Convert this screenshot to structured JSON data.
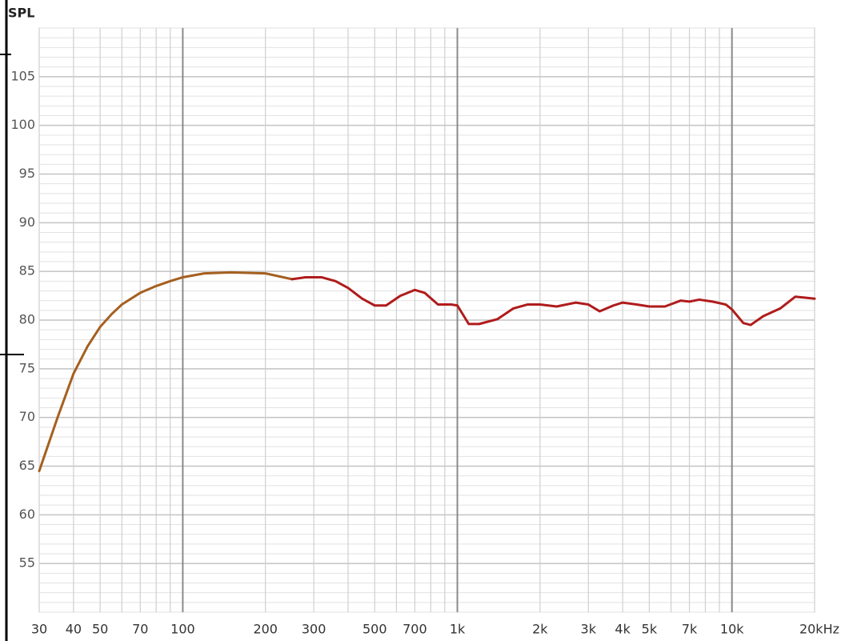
{
  "chart_data": {
    "type": "line",
    "y_label": "SPL",
    "xscale": "log",
    "xlim": [
      30,
      20000
    ],
    "ylim": [
      50,
      110
    ],
    "grid": true,
    "xticks": [
      30,
      40,
      50,
      70,
      100,
      200,
      300,
      500,
      700,
      {
        "value": 1000,
        "label": "1k"
      },
      {
        "value": 2000,
        "label": "2k"
      },
      {
        "value": 3000,
        "label": "3k"
      },
      {
        "value": 4000,
        "label": "4k"
      },
      {
        "value": 5000,
        "label": "5k"
      },
      {
        "value": 7000,
        "label": "7k"
      },
      {
        "value": 10000,
        "label": "10k"
      },
      {
        "value": 20000,
        "label": "20kHz"
      }
    ],
    "xminor_ticks": [
      60,
      80,
      90,
      400,
      600,
      800,
      900,
      6000,
      8000,
      9000
    ],
    "yticks": [
      55,
      60,
      65,
      70,
      75,
      80,
      85,
      90,
      95,
      100,
      105
    ],
    "series": [
      {
        "color": "#a5601f",
        "x": [
          30,
          35,
          40,
          45,
          50,
          55,
          60,
          70,
          80,
          90,
          100,
          120,
          150,
          200,
          250
        ],
        "values": [
          64.5,
          70,
          74.5,
          77.3,
          79.3,
          80.6,
          81.6,
          82.8,
          83.5,
          84,
          84.4,
          84.8,
          84.9,
          84.8,
          84.2
        ]
      },
      {
        "color": "#b01c1c",
        "x": [
          250,
          280,
          320,
          360,
          400,
          450,
          500,
          550,
          620,
          700,
          760,
          850,
          950,
          1000,
          1100,
          1200,
          1400,
          1600,
          1800,
          2000,
          2300,
          2700,
          3000,
          3300,
          3700,
          4000,
          4500,
          5000,
          5700,
          6500,
          7000,
          7600,
          8500,
          9500,
          10000,
          11000,
          11700,
          13000,
          15000,
          17000,
          18500,
          20000
        ],
        "values": [
          84.2,
          84.4,
          84.4,
          84.0,
          83.3,
          82.2,
          81.5,
          81.5,
          82.5,
          83.1,
          82.8,
          81.6,
          81.6,
          81.5,
          79.6,
          79.6,
          80.1,
          81.2,
          81.6,
          81.6,
          81.4,
          81.8,
          81.6,
          80.9,
          81.5,
          81.8,
          81.6,
          81.4,
          81.4,
          82.0,
          81.9,
          82.1,
          81.9,
          81.6,
          81.1,
          79.7,
          79.5,
          80.4,
          81.2,
          82.4,
          82.3,
          82.2
        ]
      }
    ]
  }
}
